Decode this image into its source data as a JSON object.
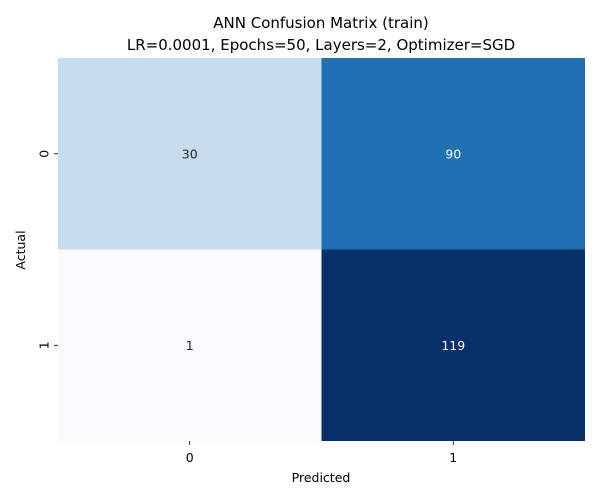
{
  "chart_data": {
    "type": "heatmap",
    "title_line1": "ANN Confusion Matrix (train)",
    "title_line2": "LR=0.0001, Epochs=50, Layers=2, Optimizer=SGD",
    "xlabel": "Predicted",
    "ylabel": "Actual",
    "x_categories": [
      "0",
      "1"
    ],
    "y_categories": [
      "0",
      "1"
    ],
    "values": [
      [
        30,
        90
      ],
      [
        1,
        119
      ]
    ],
    "colormap": "Blues",
    "colorbar": false,
    "annotate": true
  }
}
